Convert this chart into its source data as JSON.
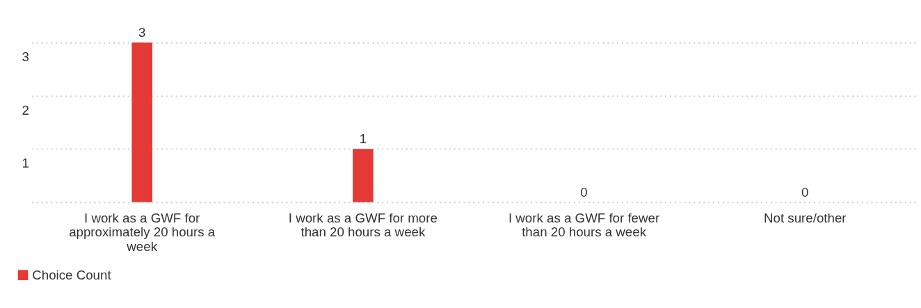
{
  "chart_data": {
    "type": "bar",
    "categories": [
      "I work as a GWF for approximately 20 hours a week",
      "I work as a GWF for more than 20 hours a week",
      "I work as a GWF for fewer than 20 hours a week",
      "Not sure/other"
    ],
    "series": [
      {
        "name": "Choice Count",
        "color": "#e53935",
        "values": [
          3,
          1,
          0,
          0
        ]
      }
    ],
    "ylim": [
      0,
      3
    ],
    "yticks": [
      {
        "value": 0,
        "label": null
      },
      1,
      2,
      3
    ],
    "grid": "y",
    "legend": "bottom left",
    "data_labels": true
  }
}
